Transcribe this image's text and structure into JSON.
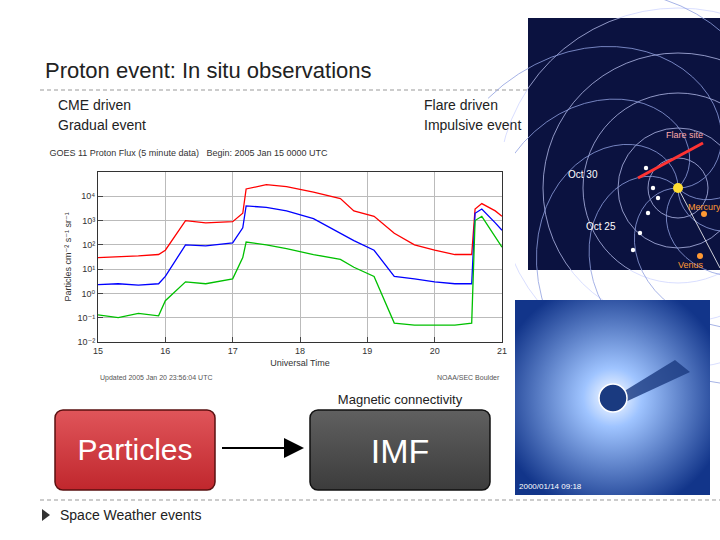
{
  "slide": {
    "title": "Proton event: In situ observations",
    "left_label": [
      "CME driven",
      "Gradual event"
    ],
    "right_label": [
      "Flare driven",
      "Impulsive event"
    ],
    "boxes": [
      {
        "text": "Particles",
        "color": "#c0272d"
      },
      {
        "text": "IMF",
        "color": "#3c3c3c"
      }
    ],
    "arrow_label": "Magnetic connectivity",
    "footer": "Space Weather events",
    "spiral_image": {
      "labels": [
        "Oct 30",
        "Oct 25",
        "Venus",
        "Mercury",
        "Flare site"
      ]
    },
    "coronagraph_image": {
      "label": "2000/01/14 09:18"
    }
  },
  "chart_data": {
    "type": "line",
    "title": "GOES 11 Proton Flux (5 minute data)",
    "subtitle": "Begin: 2005 Jan 15 0000 UTC",
    "x_label": "Universal Time",
    "y_label": "Particles cm⁻² s⁻¹ sr⁻¹",
    "annotations": [
      "Updated 2005 Jan 20 23:56:04 UTC",
      "NOAA/SEC Boulder"
    ],
    "log": "y",
    "grid": true,
    "x": [
      15,
      15.3,
      15.6,
      15.9,
      16.0,
      16.3,
      16.6,
      17.0,
      17.15,
      17.2,
      17.5,
      17.8,
      18.2,
      18.6,
      18.8,
      19.1,
      19.4,
      19.7,
      20.0,
      20.3,
      20.55,
      20.6,
      20.7,
      20.9,
      21
    ],
    "series": [
      {
        "color": "#ff0000",
        "values": [
          30,
          32,
          35,
          40,
          60,
          1000,
          800,
          900,
          2000,
          20000,
          30000,
          25000,
          15000,
          8000,
          2500,
          1500,
          300,
          100,
          60,
          40,
          40,
          3000,
          5000,
          2500,
          1500
        ]
      },
      {
        "color": "#0000ff",
        "values": [
          2.3,
          2.5,
          2.2,
          2.5,
          5,
          100,
          90,
          120,
          500,
          4000,
          3500,
          2500,
          1200,
          300,
          150,
          60,
          5,
          4,
          3,
          2.5,
          2.5,
          2000,
          3000,
          800,
          400
        ]
      },
      {
        "color": "#00c000",
        "values": [
          0.13,
          0.1,
          0.15,
          0.12,
          0.5,
          3,
          2.5,
          4,
          30,
          130,
          100,
          70,
          40,
          25,
          12,
          5,
          0.06,
          0.05,
          0.05,
          0.05,
          0.06,
          1000,
          1500,
          200,
          80
        ]
      }
    ],
    "xlim": [
      15,
      21
    ],
    "xticks": [
      15,
      16,
      17,
      18,
      19,
      20,
      21
    ],
    "ylim": [
      0.01,
      100000
    ],
    "yticks": [
      {
        "value": 0.01,
        "label": "10⁻²"
      },
      {
        "value": 0.1,
        "label": "10⁻¹"
      },
      {
        "value": 1,
        "label": "10⁰"
      },
      {
        "value": 10,
        "label": "10¹"
      },
      {
        "value": 100,
        "label": "10²"
      },
      {
        "value": 1000,
        "label": "10³"
      },
      {
        "value": 10000,
        "label": "10⁴"
      }
    ]
  }
}
